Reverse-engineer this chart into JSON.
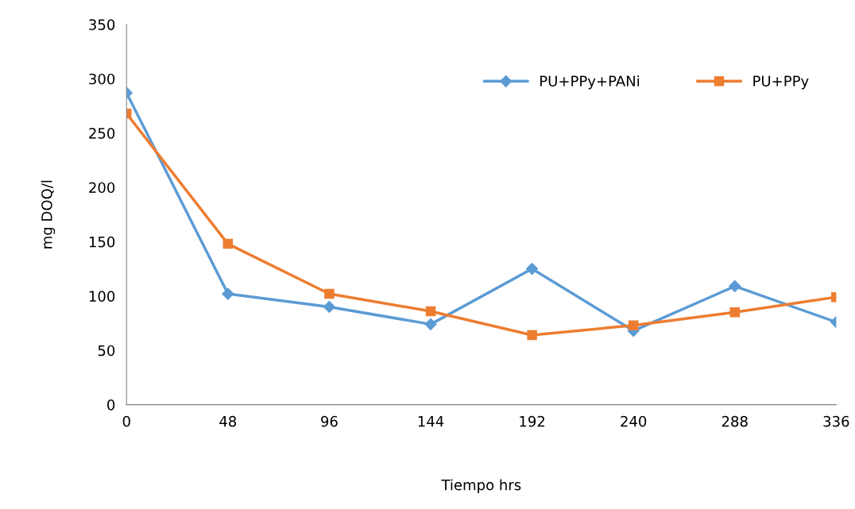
{
  "chart_data": {
    "type": "line",
    "xlabel": "Tiempo hrs",
    "ylabel": "mg DOQ/l",
    "x": [
      0,
      48,
      96,
      144,
      192,
      240,
      288,
      336
    ],
    "xlim": [
      0,
      336
    ],
    "xticks": [
      0,
      48,
      96,
      144,
      192,
      240,
      288,
      336
    ],
    "ylim": [
      0,
      350
    ],
    "yticks": [
      0,
      50,
      100,
      150,
      200,
      250,
      300,
      350
    ],
    "grid": false,
    "legend": "top right",
    "line_style": "solid",
    "series": [
      {
        "name": "PU+PPy+PANi",
        "color": "#5b9bd5",
        "marker": "diamond",
        "values": [
          287,
          102,
          90,
          74,
          125,
          68,
          109,
          76
        ]
      },
      {
        "name": "PU+PPy",
        "color": "#ed7d31",
        "marker": "square",
        "values": [
          268,
          148,
          102,
          86,
          64,
          73,
          85,
          99
        ]
      }
    ]
  }
}
